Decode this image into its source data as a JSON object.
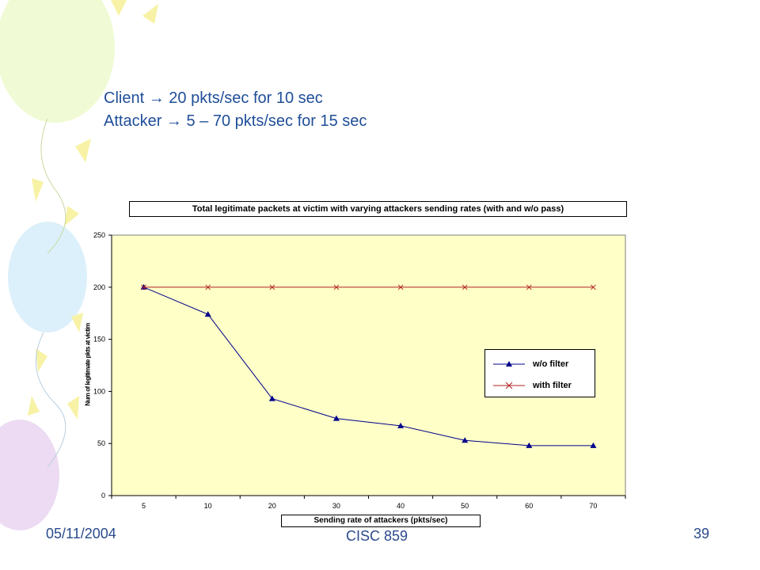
{
  "slide": {
    "bullets": [
      {
        "before": "Client",
        "arrow": "→",
        "after": "20 pkts/sec for 10 sec"
      },
      {
        "before": "Attacker",
        "arrow": "→",
        "after": "5 – 70 pkts/sec for 15 sec"
      }
    ],
    "footer_date": "05/11/2004",
    "footer_course": "CISC 859",
    "page_number": "39"
  },
  "chart_data": {
    "type": "line",
    "title": "Total legitimate packets at victim with varying attackers sending rates (with and w/o pass)",
    "xlabel": "Sending rate of attackers (pkts/sec)",
    "ylabel": "Num of legitimate pkts at victim",
    "categories": [
      "5",
      "10",
      "20",
      "30",
      "40",
      "50",
      "60",
      "70"
    ],
    "ylim": [
      0,
      250
    ],
    "yticks": [
      "0",
      "50",
      "100",
      "150",
      "200",
      "250"
    ],
    "grid": false,
    "legend_position": "right",
    "background_color": "#ffffc8",
    "series": [
      {
        "name": "w/o filter",
        "values": [
          200,
          174,
          93,
          74,
          67,
          53,
          48,
          48
        ],
        "color": "#00008b",
        "marker": "triangle"
      },
      {
        "name": "with filter",
        "values": [
          200,
          200,
          200,
          200,
          200,
          200,
          200,
          200
        ],
        "color": "#b22222",
        "marker": "x"
      }
    ]
  }
}
